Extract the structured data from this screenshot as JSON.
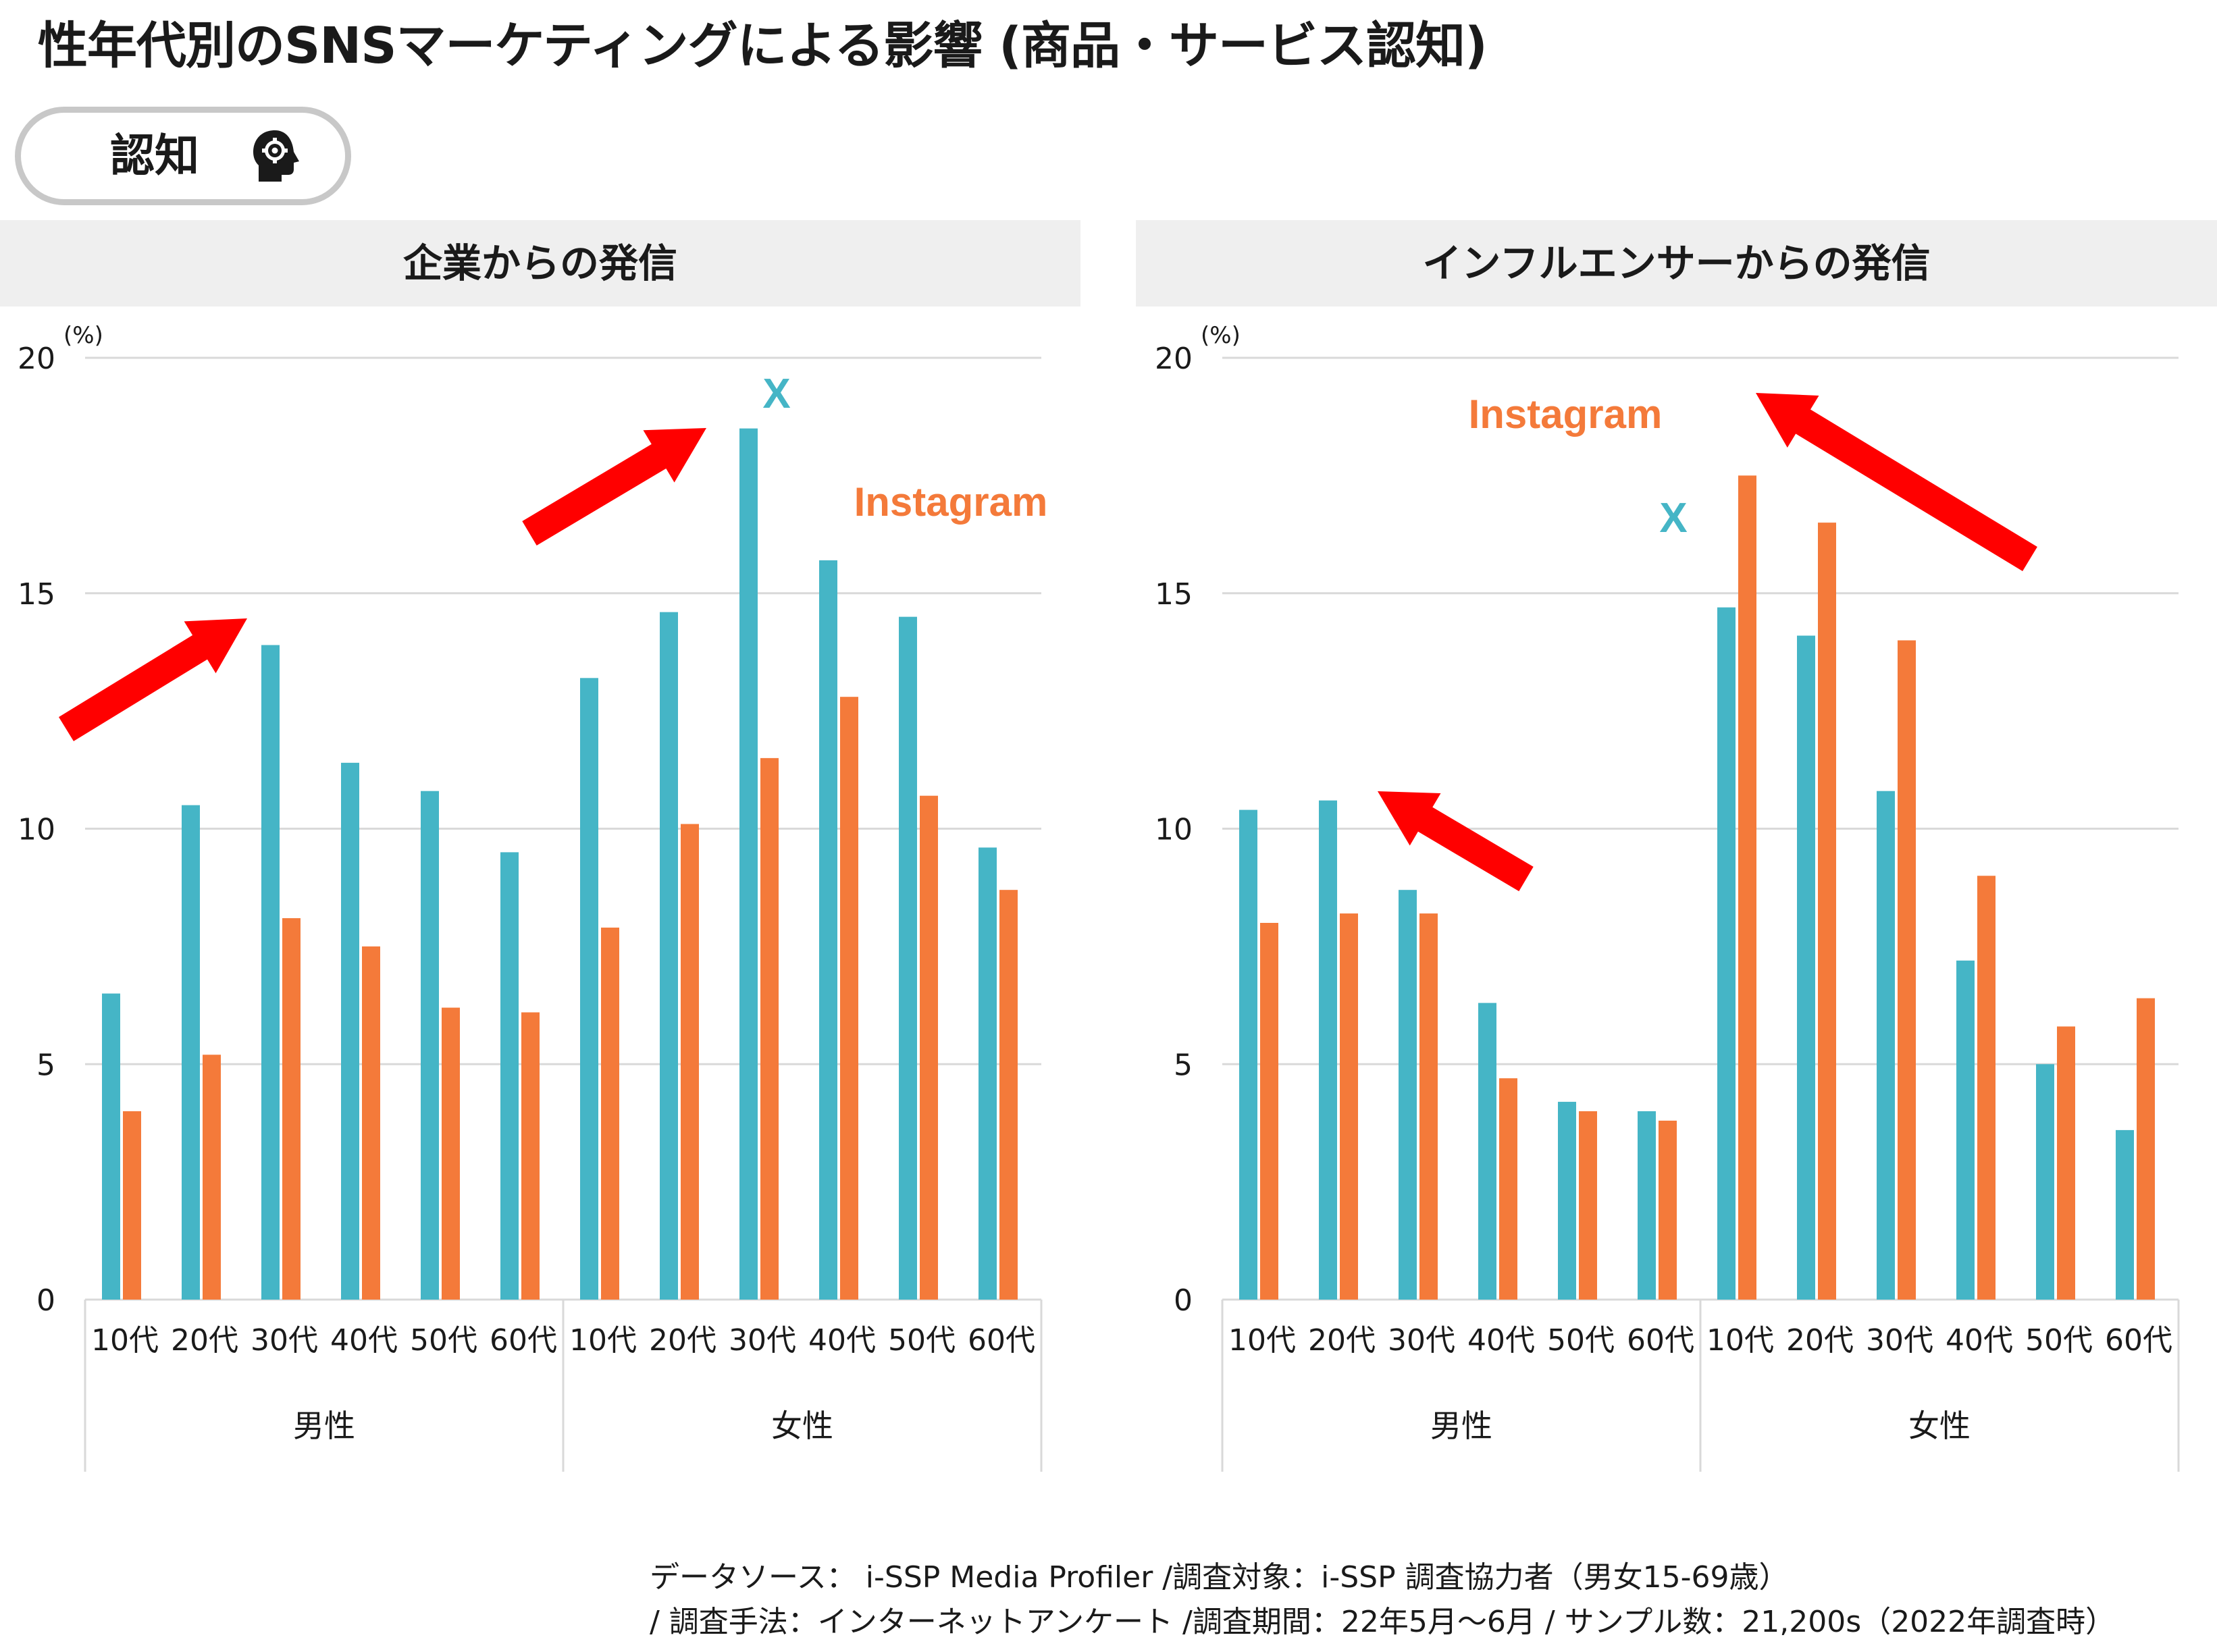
{
  "title": "性年代別のSNSマーケティングによる影響 (商品・サービス認知)",
  "badge": {
    "label": "認知",
    "icon": "head-gear-icon"
  },
  "colors": {
    "x": "#45b5c6",
    "instagram": "#f47a3a",
    "arrow": "#ff0000",
    "grid": "#d9d9d9",
    "header_bg": "#efefef"
  },
  "chart_data": [
    {
      "type": "bar",
      "title": "企業からの発信",
      "unit": "(%)",
      "ylim": [
        0,
        20
      ],
      "yticks": [
        0,
        5,
        10,
        15,
        20
      ],
      "categories": [
        "10代",
        "20代",
        "30代",
        "40代",
        "50代",
        "60代",
        "10代",
        "20代",
        "30代",
        "40代",
        "50代",
        "60代"
      ],
      "groups": [
        {
          "label": "男性",
          "count": 6
        },
        {
          "label": "女性",
          "count": 6
        }
      ],
      "series": [
        {
          "name": "X",
          "values": [
            6.5,
            10.5,
            13.9,
            11.4,
            10.8,
            9.5,
            13.2,
            14.6,
            18.5,
            15.7,
            14.5,
            9.6
          ]
        },
        {
          "name": "Instagram",
          "values": [
            4.0,
            5.2,
            8.1,
            7.5,
            6.2,
            6.1,
            7.9,
            10.1,
            11.5,
            12.8,
            10.7,
            8.7
          ]
        }
      ],
      "grid": true
    },
    {
      "type": "bar",
      "title": "インフルエンサーからの発信",
      "unit": "(%)",
      "ylim": [
        0,
        20
      ],
      "yticks": [
        0,
        5,
        10,
        15,
        20
      ],
      "categories": [
        "10代",
        "20代",
        "30代",
        "40代",
        "50代",
        "60代",
        "10代",
        "20代",
        "30代",
        "40代",
        "50代",
        "60代"
      ],
      "groups": [
        {
          "label": "男性",
          "count": 6
        },
        {
          "label": "女性",
          "count": 6
        }
      ],
      "series": [
        {
          "name": "X",
          "values": [
            10.4,
            10.6,
            8.7,
            6.3,
            4.2,
            4.0,
            14.7,
            14.1,
            10.8,
            7.2,
            5.0,
            3.6
          ]
        },
        {
          "name": "Instagram",
          "values": [
            8.0,
            8.2,
            8.2,
            4.7,
            4.0,
            3.8,
            17.5,
            16.5,
            14.0,
            9.0,
            5.8,
            6.4
          ]
        }
      ],
      "grid": true
    }
  ],
  "footnotes": [
    "データソース： i-SSP Media Profiler /調査対象：i-SSP 調査協力者（男女15-69歳）",
    "/ 調査手法：インターネットアンケート /調査期間：22年5月〜6月 / サンプル数：21,200s（2022年調査時）"
  ]
}
